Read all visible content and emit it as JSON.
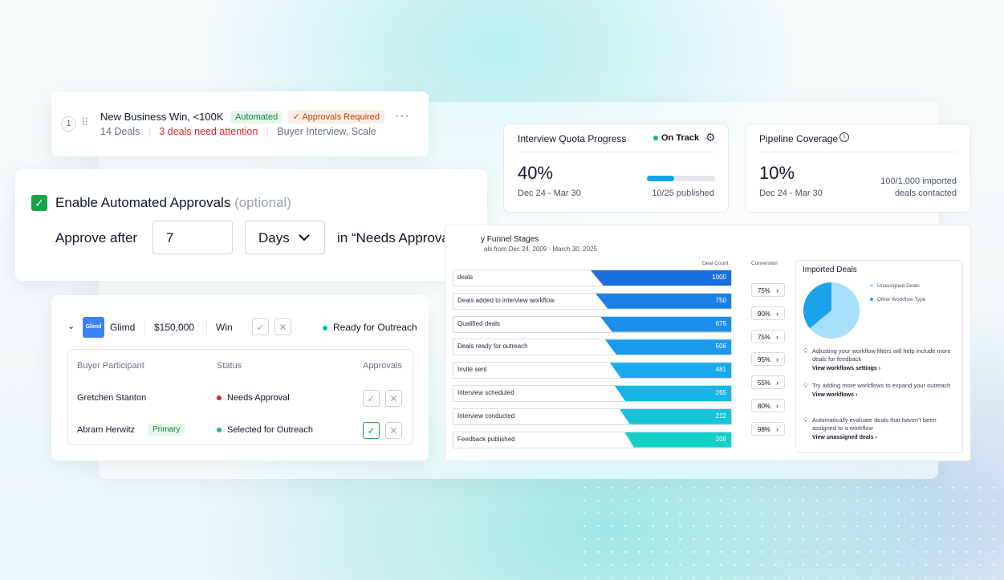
{
  "row_card": {
    "index": "1",
    "title": "New Business Win, <100K",
    "automated": "Automated",
    "approvals_required": "✓ Approvals Required",
    "deals": "14 Deals",
    "attention": "3 deals need attention",
    "tags": "Buyer Interview, Scale",
    "more": "···"
  },
  "approval": {
    "label": "Enable Automated Approvals",
    "optional": "(optional)",
    "approve_after": "Approve after",
    "days_value": "7",
    "unit": "Days",
    "suffix": "in “Needs Approval”"
  },
  "deal": {
    "logo": "Glimd",
    "company": "Glimd",
    "amount": "$150,000",
    "stage": "Win",
    "status": "Ready for Outreach",
    "headers": {
      "participant": "Buyer Participant",
      "status": "Status",
      "approvals": "Approvals"
    },
    "rows": [
      {
        "name": "Gretchen Stanton",
        "badge": "",
        "status": "Needs Approval"
      },
      {
        "name": "Abram Herwitz",
        "badge": "Primary",
        "status": "Selected for Outreach"
      }
    ]
  },
  "quota": {
    "title": "Interview Quota Progress",
    "badge": "On Track",
    "value": "40%",
    "range": "Dec 24 - Mar 30",
    "published": "10/25 published",
    "progress": 0.4
  },
  "coverage": {
    "title": "Pipeline Coverage",
    "value": "10%",
    "range": "Dec 24 - Mar 30",
    "note1": "100/1,000 imported",
    "note2": "deals contacted"
  },
  "funnel": {
    "title": "y Funnel Stages",
    "subtitle": "als from Dec 24, 2009 - March 30, 2025",
    "col_count": "Deal Count",
    "col_conv": "Conversion",
    "rows": [
      {
        "label": "deals",
        "value": "1000",
        "conv": "75%"
      },
      {
        "label": "Deals added to interview workflow",
        "value": "750",
        "conv": "90%"
      },
      {
        "label": "Qualified deals",
        "value": "675",
        "conv": "75%"
      },
      {
        "label": "Deals ready for outreach",
        "value": "506",
        "conv": "95%"
      },
      {
        "label": "Invite sent",
        "value": "481",
        "conv": "55%"
      },
      {
        "label": "Interview scheduled",
        "value": "265",
        "conv": "80%"
      },
      {
        "label": "Interview conducted",
        "value": "212",
        "conv": "98%"
      },
      {
        "label": "Feedback published",
        "value": "208",
        "conv": ""
      }
    ]
  },
  "imported": {
    "title": "Imported Deals",
    "legend": [
      "Unassigned Deals",
      "Other Workflow Type"
    ],
    "pie": [
      {
        "name": "Unassigned Deals",
        "value": 0.64,
        "color": "#a8e0fb"
      },
      {
        "name": "Other Workflow Type",
        "value": 0.36,
        "color": "#1aa3ea"
      }
    ],
    "tips": [
      {
        "text": "Adjusting your workflow filters will help include more deals for feedback",
        "link": "View workflows settings ›"
      },
      {
        "text": "Try adding more workflows to expand your outreach",
        "link": "View workflows ›"
      },
      {
        "text": "Automatically evaluate deals that haven’t been assigned to a workflow",
        "link": "View unassigned deals ›"
      }
    ]
  }
}
